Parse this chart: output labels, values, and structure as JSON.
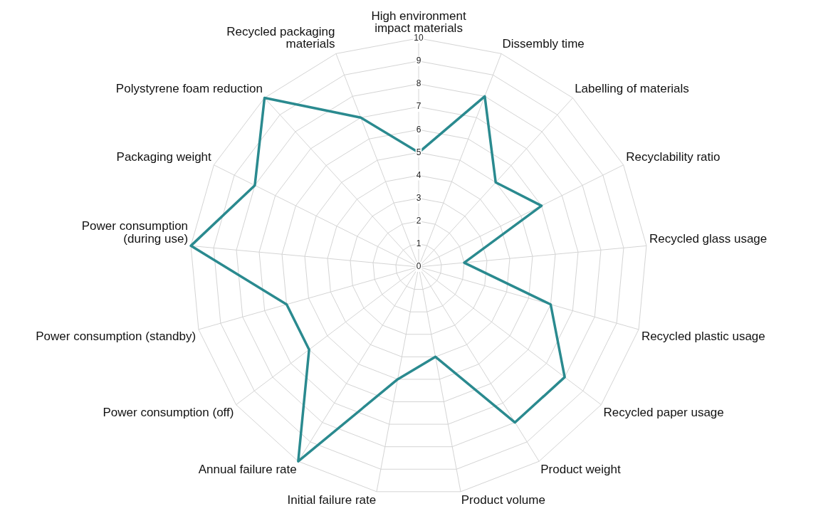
{
  "chart_data": {
    "type": "radar",
    "categories": [
      "High environment impact materials",
      "Dissembly time",
      "Labelling of materials",
      "Recyclability ratio",
      "Recycled glass usage",
      "Recycled plastic usage",
      "Recycled paper usage",
      "Product weight",
      "Product volume",
      "Initial failure rate",
      "Annual failure rate",
      "Power consumption (off)",
      "Power consumption (standby)",
      "Power consumption (during use)",
      "Packaging weight",
      "Polystyrene foam reduction",
      "Recycled packaging materials"
    ],
    "series": [
      {
        "color": "#2a8a8f",
        "values": [
          5,
          8,
          5,
          6,
          2,
          6,
          8,
          8,
          4,
          5,
          10,
          6,
          6,
          10,
          8,
          10,
          7
        ]
      }
    ],
    "ylim": [
      0,
      10
    ],
    "yticks": [
      0,
      1,
      2,
      3,
      4,
      5,
      6,
      7,
      8,
      9,
      10
    ],
    "grid": true,
    "legend": false,
    "marker": "none",
    "line_style": "solid"
  }
}
